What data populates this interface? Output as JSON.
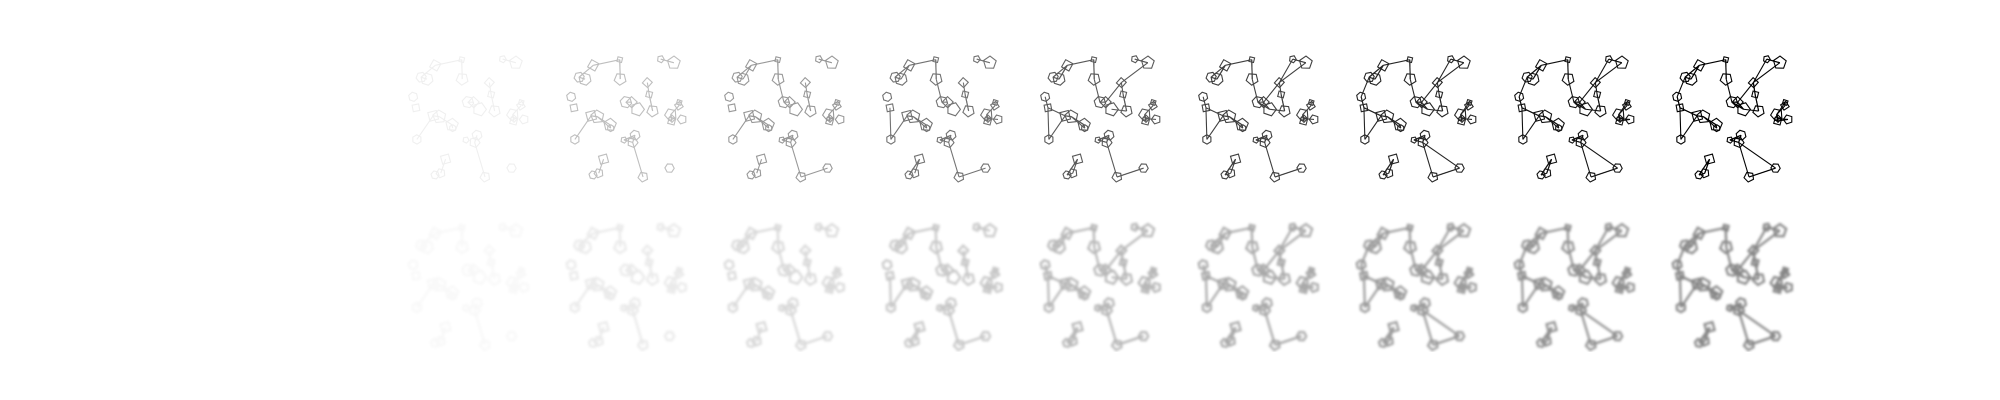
{
  "figure": {
    "rows": [
      {
        "id": "binary",
        "style": "sharp",
        "frame_opacity": [
          0.06,
          0.25,
          0.4,
          0.55,
          0.65,
          0.75,
          0.85,
          0.93,
          1.0
        ],
        "frame_density": [
          0.35,
          0.45,
          0.55,
          0.65,
          0.75,
          0.82,
          0.9,
          0.96,
          1.0
        ]
      },
      {
        "id": "blurred",
        "style": "soft",
        "frame_opacity": [
          0.04,
          0.12,
          0.22,
          0.32,
          0.42,
          0.5,
          0.58,
          0.64,
          0.7
        ],
        "frame_density": [
          0.35,
          0.45,
          0.55,
          0.65,
          0.75,
          0.82,
          0.9,
          0.96,
          1.0
        ]
      }
    ],
    "colors": {
      "ink": "#000000",
      "soft_ink": "#555555",
      "background": "#ffffff"
    }
  }
}
